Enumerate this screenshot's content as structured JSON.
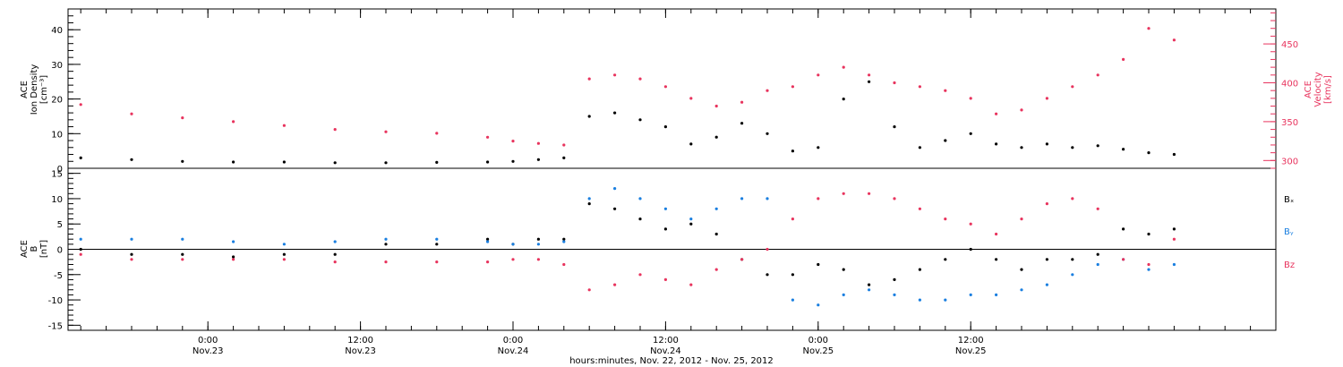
{
  "colors": {
    "black": "#000000",
    "red": "#e8345e",
    "blue": "#1a7fe0"
  },
  "chart_data": [
    {
      "type": "scatter",
      "panel": "top",
      "ylabel_left": [
        "ACE",
        "Ion Density",
        "[cm⁻³]"
      ],
      "ylabel_right": [
        "ACE",
        "Velocity",
        "[km/s]"
      ],
      "ylim_left": [
        0,
        46
      ],
      "yticks_left": [
        0,
        10,
        20,
        30,
        40
      ],
      "ylim_right": [
        290,
        495
      ],
      "yticks_right": [
        300,
        350,
        400,
        450
      ],
      "series": [
        {
          "axis": "left",
          "color": "black",
          "x": [
            -10,
            -6,
            -2,
            2,
            6,
            10,
            14,
            18,
            22,
            24,
            26,
            28,
            30,
            32,
            34,
            36,
            38,
            40,
            42,
            44,
            46,
            48,
            50,
            52,
            54,
            56,
            58,
            60,
            62,
            64,
            66,
            68,
            70,
            72,
            74,
            76
          ],
          "y": [
            3,
            2.5,
            2,
            1.8,
            1.8,
            1.6,
            1.6,
            1.7,
            1.8,
            2,
            2.5,
            3,
            15,
            16,
            14,
            12,
            7,
            9,
            13,
            10,
            5,
            6,
            20,
            25,
            12,
            6,
            8,
            10,
            7,
            6,
            7,
            6,
            6.5,
            5.5,
            4.5,
            4
          ]
        },
        {
          "axis": "right",
          "color": "red",
          "x": [
            -10,
            -6,
            -2,
            2,
            6,
            10,
            14,
            18,
            22,
            24,
            26,
            28,
            30,
            32,
            34,
            36,
            38,
            40,
            42,
            44,
            46,
            48,
            50,
            52,
            54,
            56,
            58,
            60,
            62,
            64,
            66,
            68,
            70,
            72,
            74,
            76
          ],
          "y": [
            372,
            360,
            355,
            350,
            345,
            340,
            337,
            335,
            330,
            325,
            322,
            320,
            405,
            410,
            405,
            395,
            380,
            370,
            375,
            390,
            395,
            410,
            420,
            410,
            400,
            395,
            390,
            380,
            360,
            365,
            380,
            395,
            410,
            430,
            470,
            455
          ]
        }
      ]
    },
    {
      "type": "scatter",
      "panel": "bottom",
      "ylabel_left": [
        "ACE",
        "B",
        "[nT]"
      ],
      "ylim": [
        -16,
        16
      ],
      "yticks": [
        -15,
        -10,
        -5,
        0,
        5,
        10,
        15
      ],
      "legend": [
        "Bₓ",
        "Bᵧ",
        "Bz"
      ],
      "series": [
        {
          "name": "Bₓ",
          "color": "black",
          "x": [
            -10,
            -6,
            -2,
            2,
            6,
            10,
            14,
            18,
            22,
            24,
            26,
            28,
            30,
            32,
            34,
            36,
            38,
            40,
            42,
            44,
            46,
            48,
            50,
            52,
            54,
            56,
            58,
            60,
            62,
            64,
            66,
            68,
            70,
            72,
            74,
            76
          ],
          "y": [
            0,
            -1,
            -1,
            -1.5,
            -1,
            -1,
            1,
            1,
            2,
            1,
            2,
            2,
            9,
            8,
            6,
            4,
            5,
            3,
            -2,
            -5,
            -5,
            -3,
            -4,
            -7,
            -6,
            -4,
            -2,
            0,
            -2,
            -4,
            -2,
            -2,
            -1,
            4,
            3,
            4
          ]
        },
        {
          "name": "Bᵧ",
          "color": "blue",
          "x": [
            -10,
            -6,
            -2,
            2,
            6,
            10,
            14,
            18,
            22,
            24,
            26,
            28,
            30,
            32,
            34,
            36,
            38,
            40,
            42,
            44,
            46,
            48,
            50,
            52,
            54,
            56,
            58,
            60,
            62,
            64,
            66,
            68,
            70,
            72,
            74,
            76
          ],
          "y": [
            2,
            2,
            2,
            1.5,
            1,
            1.5,
            2,
            2,
            1.5,
            1,
            1,
            1.5,
            10,
            12,
            10,
            8,
            6,
            8,
            10,
            10,
            -10,
            -11,
            -9,
            -8,
            -9,
            -10,
            -10,
            -9,
            -9,
            -8,
            -7,
            -5,
            -3,
            -2,
            -4,
            -3
          ]
        },
        {
          "name": "Bz",
          "color": "red",
          "x": [
            -10,
            -6,
            -2,
            2,
            6,
            10,
            14,
            18,
            22,
            24,
            26,
            28,
            30,
            32,
            34,
            36,
            38,
            40,
            42,
            44,
            46,
            48,
            50,
            52,
            54,
            56,
            58,
            60,
            62,
            64,
            66,
            68,
            70,
            72,
            74,
            76
          ],
          "y": [
            -1,
            -2,
            -2,
            -2,
            -2,
            -2.5,
            -2.5,
            -2.5,
            -2.5,
            -2,
            -2,
            -3,
            -8,
            -7,
            -5,
            -6,
            -7,
            -4,
            -2,
            0,
            6,
            10,
            11,
            11,
            10,
            8,
            6,
            5,
            3,
            6,
            9,
            10,
            8,
            -2,
            -3,
            2
          ]
        }
      ]
    }
  ],
  "axis": {
    "x_range_hours": [
      -11,
      84
    ],
    "x_tick_hours": [
      0,
      12,
      24,
      36,
      48,
      60
    ],
    "time_labels": [
      "0:00",
      "12:00",
      "0:00",
      "12:00",
      "0:00",
      "12:00"
    ],
    "date_labels": [
      "Nov.23",
      "Nov.23",
      "Nov.24",
      "Nov.24",
      "Nov.25",
      "Nov.25"
    ],
    "xlabel": "hours:minutes, Nov. 22, 2012 - Nov. 25, 2012"
  }
}
